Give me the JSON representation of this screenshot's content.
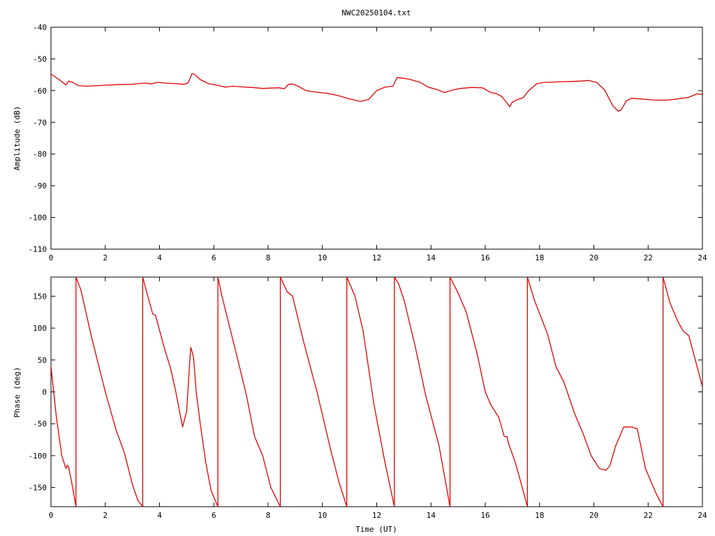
{
  "chart_data": [
    {
      "type": "line",
      "title": "NWC20250104.txt",
      "xlabel": "",
      "ylabel": "Amplitude (dB)",
      "xlim": [
        0,
        24
      ],
      "ylim": [
        -110,
        -40
      ],
      "xticks": [
        "0",
        "2",
        "4",
        "6",
        "8",
        "10",
        "12",
        "14",
        "16",
        "18",
        "20",
        "22",
        "24"
      ],
      "yticks": [
        "-40",
        "-50",
        "-60",
        "-70",
        "-80",
        "-90",
        "-100",
        "-110"
      ],
      "grid": false,
      "color": "#e00000",
      "series": [
        {
          "x": [
            0,
            0.3,
            0.55,
            0.65,
            0.8,
            1.0,
            1.3,
            1.6,
            2.0,
            2.5,
            3.0,
            3.2,
            3.5,
            3.7,
            3.9,
            4.2,
            4.6,
            4.9,
            5.05,
            5.2,
            5.3,
            5.5,
            5.8,
            6.2,
            6.4,
            6.7,
            7.0,
            7.4,
            7.8,
            8.1,
            8.4,
            8.6,
            8.75,
            8.9,
            9.1,
            9.4,
            9.8,
            10.2,
            10.6,
            11.0,
            11.4,
            11.7,
            12.0,
            12.3,
            12.6,
            12.75,
            12.9,
            13.2,
            13.6,
            13.9,
            14.2,
            14.5,
            14.8,
            15.1,
            15.5,
            15.9,
            16.2,
            16.4,
            16.6,
            16.8,
            16.9,
            17.0,
            17.2,
            17.4,
            17.6,
            17.9,
            18.2,
            18.5,
            18.8,
            19.2,
            19.5,
            19.8,
            20.1,
            20.4,
            20.7,
            20.9,
            21.0,
            21.2,
            21.4,
            21.7,
            22.0,
            22.3,
            22.6,
            22.9,
            23.2,
            23.5,
            23.8,
            24.0
          ],
          "y": [
            -54.8,
            -56.5,
            -58.2,
            -57.0,
            -57.4,
            -58.4,
            -58.6,
            -58.5,
            -58.3,
            -58.1,
            -58.0,
            -57.8,
            -57.6,
            -57.9,
            -57.4,
            -57.6,
            -57.8,
            -58.0,
            -57.6,
            -54.6,
            -54.9,
            -56.5,
            -57.8,
            -58.4,
            -58.9,
            -58.6,
            -58.8,
            -59.0,
            -59.3,
            -59.2,
            -59.1,
            -59.4,
            -58.0,
            -57.9,
            -58.6,
            -60.0,
            -60.5,
            -60.9,
            -61.6,
            -62.6,
            -63.4,
            -62.8,
            -60.0,
            -58.9,
            -58.6,
            -55.9,
            -56.0,
            -56.4,
            -57.4,
            -58.9,
            -59.6,
            -60.6,
            -59.8,
            -59.3,
            -59.0,
            -59.1,
            -60.6,
            -60.9,
            -61.8,
            -63.9,
            -65.1,
            -63.6,
            -62.8,
            -62.2,
            -60.0,
            -57.8,
            -57.4,
            -57.3,
            -57.2,
            -57.1,
            -57.0,
            -56.8,
            -57.4,
            -59.8,
            -64.8,
            -66.5,
            -66.1,
            -63.2,
            -62.4,
            -62.6,
            -62.8,
            -63.0,
            -63.0,
            -62.8,
            -62.5,
            -62.1,
            -61.0,
            -61.2
          ]
        }
      ]
    },
    {
      "type": "line",
      "xlabel": "Time (UT)",
      "ylabel": "Phase (deg)",
      "xlim": [
        0,
        24
      ],
      "ylim": [
        -180,
        180
      ],
      "xticks": [
        "0",
        "2",
        "4",
        "6",
        "8",
        "10",
        "12",
        "14",
        "16",
        "18",
        "20",
        "22",
        "24"
      ],
      "yticks": [
        "150",
        "100",
        "50",
        "0",
        "-50",
        "-100",
        "-150"
      ],
      "grid": false,
      "color": "#e00000",
      "series": [
        {
          "x": [
            0.0,
            0.2,
            0.4,
            0.55,
            0.6,
            0.65,
            0.8,
            0.92,
            0.92,
            1.1,
            1.5,
            2.0,
            2.4,
            2.7,
            3.0,
            3.2,
            3.38,
            3.38,
            3.6,
            3.75,
            3.85,
            4.2,
            4.4,
            4.6,
            4.85,
            5.0,
            5.1,
            5.15,
            5.25,
            5.35,
            5.5,
            5.7,
            5.9,
            6.15,
            6.15,
            6.3,
            6.8,
            7.2,
            7.5,
            7.8,
            8.1,
            8.45,
            8.45,
            8.7,
            8.9,
            9.3,
            9.8,
            10.3,
            10.6,
            10.9,
            10.9,
            11.2,
            11.5,
            11.9,
            12.3,
            12.65,
            12.65,
            12.8,
            13.0,
            13.4,
            13.8,
            14.3,
            14.7,
            14.7,
            15.0,
            15.3,
            15.7,
            16.0,
            16.2,
            16.5,
            16.7,
            16.8,
            16.85,
            17.1,
            17.3,
            17.55,
            17.55,
            17.8,
            18.3,
            18.6,
            18.9,
            19.3,
            19.6,
            19.9,
            20.2,
            20.45,
            20.6,
            20.8,
            21.1,
            21.4,
            21.6,
            21.9,
            22.3,
            22.55,
            22.55,
            22.8,
            23.1,
            23.3,
            23.5,
            24.0
          ],
          "y": [
            40,
            -40,
            -100,
            -120,
            -115,
            -118,
            -150,
            -180,
            180,
            160,
            85,
            0,
            -60,
            -95,
            -145,
            -170,
            -180,
            180,
            145,
            122,
            120,
            65,
            38,
            0,
            -55,
            -30,
            40,
            70,
            55,
            0,
            -50,
            -110,
            -155,
            -180,
            180,
            150,
            65,
            -5,
            -70,
            -100,
            -150,
            -180,
            180,
            157,
            150,
            80,
            0,
            -90,
            -140,
            -180,
            180,
            150,
            95,
            -20,
            -110,
            -180,
            180,
            170,
            145,
            75,
            -5,
            -85,
            -180,
            180,
            155,
            125,
            60,
            0,
            -20,
            -40,
            -70,
            -70,
            -80,
            -110,
            -140,
            -180,
            180,
            145,
            90,
            40,
            15,
            -35,
            -65,
            -100,
            -120,
            -123,
            -115,
            -85,
            -55,
            -55,
            -58,
            -120,
            -160,
            -180,
            180,
            140,
            110,
            95,
            88,
            8
          ]
        }
      ]
    }
  ]
}
